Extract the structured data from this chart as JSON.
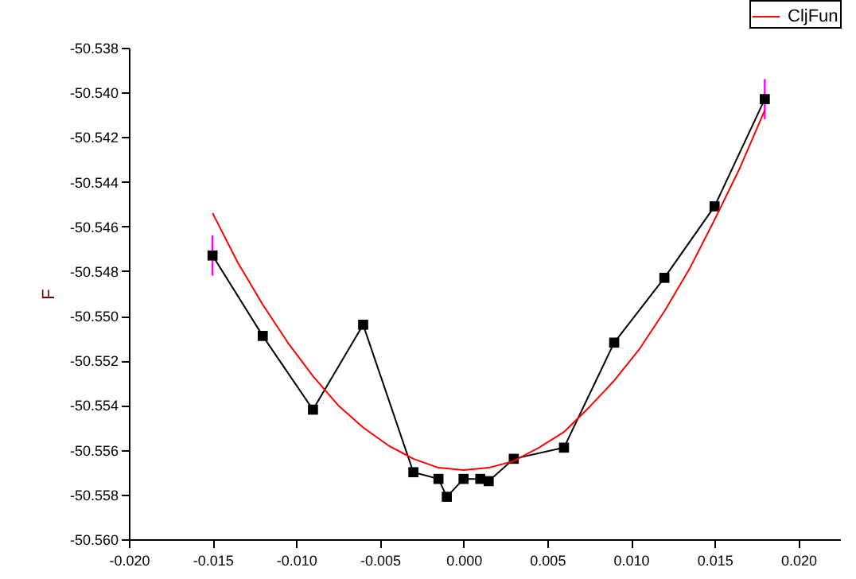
{
  "chart_data": {
    "type": "line",
    "ylabel": "F",
    "xlim": [
      -0.02,
      0.0225
    ],
    "ylim": [
      -50.56,
      -50.538
    ],
    "xticks": [
      {
        "value": -0.02,
        "label": "-0.020"
      },
      {
        "value": -0.015,
        "label": "-0.015"
      },
      {
        "value": -0.01,
        "label": "-0.010"
      },
      {
        "value": -0.005,
        "label": "-0.005"
      },
      {
        "value": 0,
        "label": "0.000"
      },
      {
        "value": 0.005,
        "label": "0.005"
      },
      {
        "value": 0.01,
        "label": "0.010"
      },
      {
        "value": 0.015,
        "label": "0.015"
      },
      {
        "value": 0.02,
        "label": "0.020"
      }
    ],
    "yticks": [
      {
        "value": -50.56,
        "label": "-50.560"
      },
      {
        "value": -50.558,
        "label": "-50.558"
      },
      {
        "value": -50.556,
        "label": "-50.556"
      },
      {
        "value": -50.554,
        "label": "-50.554"
      },
      {
        "value": -50.552,
        "label": "-50.552"
      },
      {
        "value": -50.55,
        "label": "-50.550"
      },
      {
        "value": -50.548,
        "label": "-50.548"
      },
      {
        "value": -50.546,
        "label": "-50.546"
      },
      {
        "value": -50.544,
        "label": "-50.544"
      },
      {
        "value": -50.542,
        "label": "-50.542"
      },
      {
        "value": -50.54,
        "label": "-50.540"
      },
      {
        "value": -50.538,
        "label": "-50.538"
      }
    ],
    "grid": false,
    "legend": "top right",
    "series": [
      {
        "color": "#000000",
        "marker": "square",
        "x": [
          -0.015,
          -0.012,
          -0.009,
          -0.006,
          -0.003,
          -0.0015,
          -0.001,
          0,
          0.001,
          0.0015,
          0.003,
          0.006,
          0.009,
          0.012,
          0.015,
          0.018
        ],
        "values": [
          -50.5473,
          -50.5509,
          -50.5542,
          -50.5504,
          -50.557,
          -50.5573,
          -50.5581,
          -50.5573,
          -50.5573,
          -50.5574,
          -50.5564,
          -50.5559,
          -50.5512,
          -50.5483,
          -50.5451,
          -50.5403
        ],
        "errors": [
          0.0009,
          null,
          null,
          null,
          null,
          null,
          null,
          null,
          null,
          null,
          null,
          null,
          null,
          null,
          null,
          0.0009
        ]
      },
      {
        "name": "CljFun",
        "color": "#ff0000",
        "marker": "none",
        "x": [
          -0.015,
          -0.0135,
          -0.012,
          -0.0105,
          -0.009,
          -0.0075,
          -0.006,
          -0.0045,
          -0.003,
          -0.0015,
          0,
          0.0015,
          0.003,
          0.0045,
          0.006,
          0.0075,
          0.009,
          0.0105,
          0.012,
          0.0135,
          0.015,
          0.0165,
          0.018
        ],
        "values": [
          -50.5454,
          -50.5476,
          -50.5495,
          -50.5512,
          -50.5527,
          -50.554,
          -50.555,
          -50.5558,
          -50.5564,
          -50.5568,
          -50.5569,
          -50.5568,
          -50.5565,
          -50.5559,
          -50.5552,
          -50.5541,
          -50.5529,
          -50.5515,
          -50.5498,
          -50.5479,
          -50.5457,
          -50.5434,
          -50.5408
        ]
      }
    ]
  }
}
